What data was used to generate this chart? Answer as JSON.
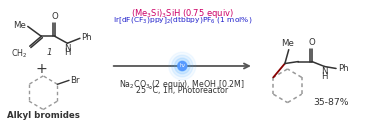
{
  "bg_color": "#ffffff",
  "arrow_color": "#555555",
  "reagent1_color": "#cc0066",
  "reagent2_color": "#2222cc",
  "reagent3_color": "#333333",
  "bond_color": "#333333",
  "highlight_bond_color": "#880000",
  "dashed_ring_color": "#999999",
  "reagent1_text": "(Me$_3$Si)$_3$SiH (0.75 equiv)",
  "reagent2_text": "Ir[dF(CF$_3$)ppy]$_2$(dtbbpy)PF$_6$ (1 mol%)",
  "reagent3_text": "Na$_2$CO$_3$ (2 equiv), MeOH [0.2M]",
  "reagent4_text": "25 °C, 1h, Photoreactor",
  "yield_text": "35-87%",
  "label1": "1",
  "label2": "Alkyl bromides",
  "fig_width": 3.78,
  "fig_height": 1.31,
  "dpi": 100
}
